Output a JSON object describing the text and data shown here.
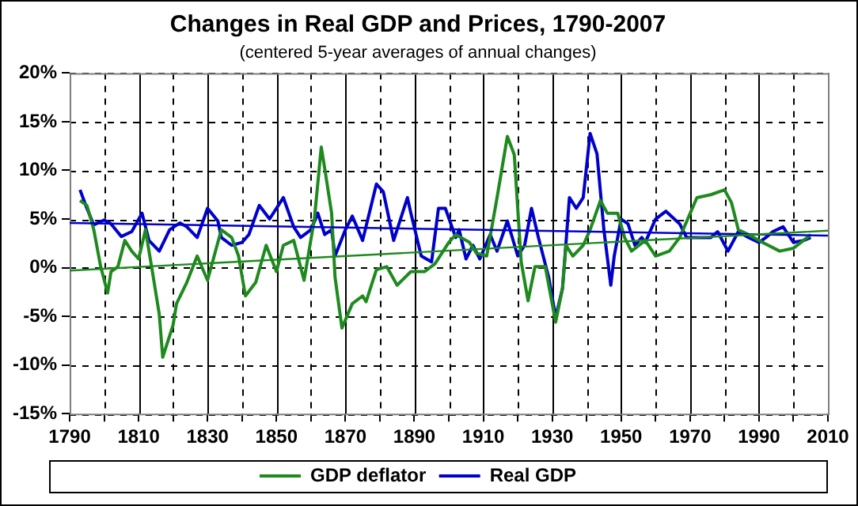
{
  "chart_data": {
    "type": "line",
    "title": "Changes in Real GDP and Prices, 1790-2007",
    "subtitle": "(centered 5-year averages of annual changes)",
    "xlim": [
      1790,
      2010
    ],
    "xticks": [
      1790,
      {
        "value": 1800,
        "label": null
      },
      1810,
      {
        "value": 1820,
        "label": null
      },
      1830,
      {
        "value": 1840,
        "label": null
      },
      1850,
      {
        "value": 1860,
        "label": null
      },
      1870,
      {
        "value": 1880,
        "label": null
      },
      1890,
      {
        "value": 1900,
        "label": null
      },
      1910,
      {
        "value": 1920,
        "label": null
      },
      1930,
      {
        "value": 1940,
        "label": null
      },
      1950,
      {
        "value": 1960,
        "label": null
      },
      1970,
      {
        "value": 1980,
        "label": null
      },
      1990,
      {
        "value": 2000,
        "label": null
      },
      2010
    ],
    "ylim": [
      -15,
      20
    ],
    "yticks": [
      {
        "value": -15,
        "label": "-15%"
      },
      {
        "value": -10,
        "label": "-10%"
      },
      {
        "value": -5,
        "label": "-5%"
      },
      {
        "value": 0,
        "label": "0%"
      },
      {
        "value": 5,
        "label": "5%"
      },
      {
        "value": 10,
        "label": "10%"
      },
      {
        "value": 15,
        "label": "15%"
      },
      {
        "value": 20,
        "label": "20%"
      }
    ],
    "grid": true,
    "legend": "bottom",
    "marker": "none",
    "line_style": "solid",
    "series": [
      {
        "name": "Real GDP",
        "color": "#0000cc",
        "x": [
          1793,
          1795,
          1797,
          1800,
          1802,
          1805,
          1808,
          1811,
          1813,
          1816,
          1819,
          1822,
          1824,
          1827,
          1830,
          1833,
          1834,
          1837,
          1840,
          1842,
          1845,
          1848,
          1852,
          1855,
          1857,
          1860,
          1862,
          1864,
          1866,
          1867,
          1870,
          1872,
          1875,
          1879,
          1881,
          1884,
          1888,
          1889,
          1892,
          1895,
          1897,
          1899,
          1902,
          1903,
          1905,
          1907,
          1909,
          1912,
          1914,
          1917,
          1920,
          1922,
          1924,
          1926,
          1929,
          1931,
          1933,
          1935,
          1937,
          1939,
          1941,
          1943,
          1945,
          1947,
          1948,
          1950,
          1952,
          1954,
          1956,
          1957,
          1960,
          1963,
          1967,
          1969,
          1972,
          1976,
          1978,
          1981,
          1984,
          1987,
          1990,
          1992,
          1994,
          1997,
          2000,
          2003,
          2005
        ],
        "values": [
          8.0,
          6.1,
          4.4,
          4.9,
          4.5,
          3.2,
          3.7,
          5.6,
          2.8,
          1.7,
          3.9,
          4.6,
          4.2,
          3.1,
          6.1,
          4.8,
          3.1,
          2.3,
          2.6,
          3.4,
          6.4,
          5.0,
          7.2,
          4.2,
          3.1,
          3.9,
          5.6,
          3.4,
          3.9,
          1.2,
          3.9,
          5.3,
          2.8,
          8.6,
          7.8,
          2.8,
          7.2,
          5.6,
          1.2,
          0.6,
          6.1,
          6.1,
          3.1,
          3.9,
          0.9,
          2.3,
          0.9,
          3.4,
          1.7,
          4.8,
          1.2,
          2.3,
          6.1,
          3.1,
          -1.0,
          -5.1,
          -2.1,
          7.2,
          6.1,
          7.2,
          13.8,
          11.7,
          3.9,
          -1.8,
          1.2,
          5.0,
          4.5,
          2.3,
          3.1,
          2.6,
          5.0,
          5.8,
          4.5,
          3.1,
          3.1,
          3.1,
          3.7,
          1.7,
          3.7,
          3.1,
          2.6,
          3.1,
          3.7,
          4.2,
          2.6,
          2.8,
          3.1
        ]
      },
      {
        "name": "GDP deflator",
        "color": "#1e8a1e",
        "x": [
          1793,
          1795,
          1797,
          1799,
          1801,
          1802,
          1804,
          1806,
          1808,
          1810,
          1812,
          1814,
          1816,
          1817,
          1820,
          1821,
          1824,
          1827,
          1830,
          1834,
          1837,
          1839,
          1841,
          1844,
          1847,
          1850,
          1852,
          1855,
          1858,
          1861,
          1863,
          1864,
          1866,
          1867,
          1869,
          1872,
          1875,
          1876,
          1879,
          1882,
          1885,
          1889,
          1893,
          1896,
          1900,
          1902,
          1906,
          1908,
          1911,
          1914,
          1917,
          1919,
          1921,
          1923,
          1925,
          1928,
          1931,
          1933,
          1934,
          1936,
          1939,
          1941,
          1944,
          1946,
          1949,
          1951,
          1953,
          1957,
          1960,
          1964,
          1967,
          1972,
          1976,
          1980,
          1982,
          1984,
          1987,
          1991,
          1996,
          2000,
          2004,
          2005
        ],
        "values": [
          6.9,
          6.4,
          3.9,
          0.1,
          -2.6,
          -0.4,
          0.1,
          2.8,
          1.7,
          0.9,
          3.9,
          -0.4,
          -4.8,
          -9.2,
          -5.9,
          -3.7,
          -1.5,
          1.2,
          -1.3,
          3.9,
          3.1,
          1.2,
          -2.9,
          -1.5,
          2.3,
          -0.4,
          2.3,
          2.8,
          -1.3,
          5.0,
          12.4,
          10.2,
          5.6,
          -1.0,
          -6.2,
          -3.7,
          -2.9,
          -3.5,
          -0.2,
          0.1,
          -1.8,
          -0.4,
          -0.4,
          0.4,
          2.6,
          3.4,
          2.6,
          1.5,
          1.2,
          7.2,
          13.5,
          11.6,
          0.6,
          -3.4,
          0.1,
          0.1,
          -5.6,
          -2.1,
          2.3,
          1.2,
          2.3,
          3.9,
          6.9,
          5.6,
          5.6,
          3.1,
          1.7,
          2.8,
          1.2,
          1.7,
          3.1,
          7.2,
          7.5,
          8.0,
          6.7,
          3.9,
          3.4,
          2.6,
          1.7,
          2.0,
          3.1,
          3.4
        ]
      },
      {
        "color": "#0000cc",
        "x": [
          1790,
          2010
        ],
        "values": [
          4.6,
          3.3
        ]
      },
      {
        "color": "#1e8a1e",
        "x": [
          1790,
          2010
        ],
        "values": [
          -0.3,
          3.8
        ]
      }
    ]
  }
}
